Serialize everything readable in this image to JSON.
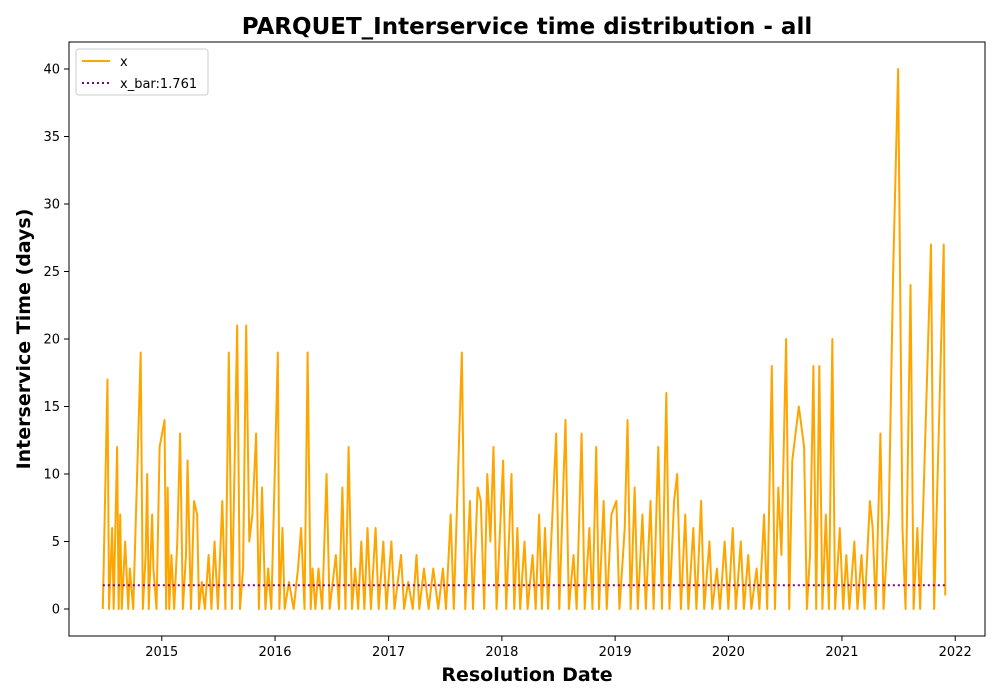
{
  "chart_data": {
    "type": "line",
    "title": "PARQUET_Interservice time distribution - all",
    "xlabel": "Resolution Date",
    "ylabel": "Interservice Time (days)",
    "xlim": [
      "2014-03-08",
      "2022-04-07"
    ],
    "ylim": [
      -2,
      42
    ],
    "x_ticks": [
      "2015",
      "2016",
      "2017",
      "2018",
      "2019",
      "2020",
      "2021",
      "2022"
    ],
    "y_ticks": [
      0,
      5,
      10,
      15,
      20,
      25,
      30,
      35,
      40
    ],
    "grid": false,
    "legend": {
      "placement": "top-left",
      "entries": [
        "x",
        "x_bar:1.761"
      ]
    },
    "series": [
      {
        "name": "x",
        "color": "#ffa500",
        "style": "solid",
        "points": [
          [
            "2014-06-25",
            0
          ],
          [
            "2014-07-10",
            17
          ],
          [
            "2014-07-15",
            0
          ],
          [
            "2014-07-25",
            6
          ],
          [
            "2014-07-30",
            0
          ],
          [
            "2014-08-10",
            12
          ],
          [
            "2014-08-15",
            0
          ],
          [
            "2014-08-20",
            7
          ],
          [
            "2014-08-25",
            0
          ],
          [
            "2014-09-05",
            5
          ],
          [
            "2014-09-15",
            0
          ],
          [
            "2014-09-20",
            3
          ],
          [
            "2014-10-01",
            0
          ],
          [
            "2014-10-25",
            19
          ],
          [
            "2014-11-01",
            0
          ],
          [
            "2014-11-10",
            4
          ],
          [
            "2014-11-15",
            10
          ],
          [
            "2014-11-20",
            0
          ],
          [
            "2014-12-01",
            7
          ],
          [
            "2014-12-05",
            3
          ],
          [
            "2014-12-15",
            0
          ],
          [
            "2014-12-25",
            12
          ],
          [
            "2015-01-10",
            14
          ],
          [
            "2015-01-15",
            0
          ],
          [
            "2015-01-20",
            9
          ],
          [
            "2015-01-25",
            0
          ],
          [
            "2015-02-01",
            4
          ],
          [
            "2015-02-10",
            0
          ],
          [
            "2015-02-20",
            5
          ],
          [
            "2015-03-01",
            13
          ],
          [
            "2015-03-10",
            0
          ],
          [
            "2015-03-20",
            4
          ],
          [
            "2015-03-25",
            11
          ],
          [
            "2015-04-05",
            0
          ],
          [
            "2015-04-15",
            8
          ],
          [
            "2015-04-25",
            7
          ],
          [
            "2015-05-01",
            0
          ],
          [
            "2015-05-10",
            2
          ],
          [
            "2015-05-20",
            0
          ],
          [
            "2015-06-01",
            4
          ],
          [
            "2015-06-10",
            0
          ],
          [
            "2015-06-20",
            5
          ],
          [
            "2015-07-01",
            0
          ],
          [
            "2015-07-15",
            8
          ],
          [
            "2015-07-25",
            0
          ],
          [
            "2015-08-05",
            19
          ],
          [
            "2015-08-15",
            0
          ],
          [
            "2015-09-01",
            21
          ],
          [
            "2015-09-10",
            0
          ],
          [
            "2015-09-20",
            3
          ],
          [
            "2015-09-30",
            21
          ],
          [
            "2015-10-10",
            5
          ],
          [
            "2015-10-20",
            7
          ],
          [
            "2015-11-01",
            13
          ],
          [
            "2015-11-10",
            0
          ],
          [
            "2015-11-20",
            9
          ],
          [
            "2015-12-01",
            0
          ],
          [
            "2015-12-10",
            3
          ],
          [
            "2015-12-20",
            0
          ],
          [
            "2016-01-10",
            19
          ],
          [
            "2016-01-15",
            0
          ],
          [
            "2016-01-25",
            6
          ],
          [
            "2016-02-01",
            0
          ],
          [
            "2016-02-15",
            2
          ],
          [
            "2016-03-01",
            0
          ],
          [
            "2016-03-15",
            3
          ],
          [
            "2016-03-25",
            6
          ],
          [
            "2016-04-05",
            0
          ],
          [
            "2016-04-15",
            19
          ],
          [
            "2016-04-25",
            0
          ],
          [
            "2016-05-01",
            3
          ],
          [
            "2016-05-10",
            0
          ],
          [
            "2016-05-20",
            3
          ],
          [
            "2016-06-01",
            0
          ],
          [
            "2016-06-15",
            10
          ],
          [
            "2016-06-25",
            0
          ],
          [
            "2016-07-15",
            4
          ],
          [
            "2016-07-25",
            0
          ],
          [
            "2016-08-05",
            9
          ],
          [
            "2016-08-15",
            0
          ],
          [
            "2016-08-25",
            12
          ],
          [
            "2016-09-05",
            0
          ],
          [
            "2016-09-15",
            3
          ],
          [
            "2016-09-25",
            0
          ],
          [
            "2016-10-05",
            5
          ],
          [
            "2016-10-15",
            0
          ],
          [
            "2016-10-25",
            6
          ],
          [
            "2016-11-05",
            0
          ],
          [
            "2016-11-20",
            6
          ],
          [
            "2016-11-30",
            0
          ],
          [
            "2016-12-15",
            5
          ],
          [
            "2016-12-25",
            0
          ],
          [
            "2017-01-10",
            5
          ],
          [
            "2017-01-20",
            0
          ],
          [
            "2017-02-10",
            4
          ],
          [
            "2017-02-20",
            0
          ],
          [
            "2017-03-05",
            2
          ],
          [
            "2017-03-20",
            0
          ],
          [
            "2017-04-01",
            4
          ],
          [
            "2017-04-10",
            0
          ],
          [
            "2017-04-25",
            3
          ],
          [
            "2017-05-10",
            0
          ],
          [
            "2017-05-25",
            3
          ],
          [
            "2017-06-10",
            0
          ],
          [
            "2017-06-25",
            3
          ],
          [
            "2017-07-05",
            0
          ],
          [
            "2017-07-20",
            7
          ],
          [
            "2017-07-30",
            0
          ],
          [
            "2017-08-25",
            19
          ],
          [
            "2017-09-05",
            0
          ],
          [
            "2017-09-20",
            8
          ],
          [
            "2017-09-30",
            0
          ],
          [
            "2017-10-15",
            9
          ],
          [
            "2017-10-25",
            8
          ],
          [
            "2017-11-05",
            0
          ],
          [
            "2017-11-15",
            10
          ],
          [
            "2017-11-25",
            5
          ],
          [
            "2017-12-05",
            12
          ],
          [
            "2017-12-15",
            0
          ],
          [
            "2018-01-05",
            11
          ],
          [
            "2018-01-15",
            0
          ],
          [
            "2018-02-01",
            10
          ],
          [
            "2018-02-10",
            0
          ],
          [
            "2018-02-20",
            6
          ],
          [
            "2018-03-01",
            0
          ],
          [
            "2018-03-15",
            5
          ],
          [
            "2018-03-25",
            0
          ],
          [
            "2018-04-10",
            4
          ],
          [
            "2018-04-20",
            0
          ],
          [
            "2018-05-01",
            7
          ],
          [
            "2018-05-10",
            0
          ],
          [
            "2018-05-20",
            6
          ],
          [
            "2018-05-30",
            0
          ],
          [
            "2018-06-15",
            8
          ],
          [
            "2018-06-25",
            13
          ],
          [
            "2018-07-05",
            0
          ],
          [
            "2018-07-25",
            14
          ],
          [
            "2018-08-05",
            0
          ],
          [
            "2018-08-20",
            4
          ],
          [
            "2018-08-30",
            0
          ],
          [
            "2018-09-15",
            13
          ],
          [
            "2018-09-25",
            0
          ],
          [
            "2018-10-10",
            6
          ],
          [
            "2018-10-20",
            0
          ],
          [
            "2018-11-01",
            12
          ],
          [
            "2018-11-10",
            0
          ],
          [
            "2018-11-25",
            8
          ],
          [
            "2018-12-05",
            0
          ],
          [
            "2018-12-20",
            7
          ],
          [
            "2019-01-05",
            8
          ],
          [
            "2019-01-15",
            0
          ],
          [
            "2019-02-01",
            6
          ],
          [
            "2019-02-10",
            14
          ],
          [
            "2019-02-20",
            0
          ],
          [
            "2019-03-05",
            9
          ],
          [
            "2019-03-15",
            0
          ],
          [
            "2019-03-30",
            7
          ],
          [
            "2019-04-10",
            0
          ],
          [
            "2019-04-25",
            8
          ],
          [
            "2019-05-05",
            0
          ],
          [
            "2019-05-20",
            12
          ],
          [
            "2019-06-01",
            0
          ],
          [
            "2019-06-15",
            16
          ],
          [
            "2019-06-25",
            0
          ],
          [
            "2019-07-10",
            8
          ],
          [
            "2019-07-20",
            10
          ],
          [
            "2019-08-01",
            0
          ],
          [
            "2019-08-15",
            7
          ],
          [
            "2019-08-25",
            0
          ],
          [
            "2019-09-10",
            6
          ],
          [
            "2019-09-20",
            0
          ],
          [
            "2019-10-05",
            8
          ],
          [
            "2019-10-15",
            0
          ],
          [
            "2019-11-01",
            5
          ],
          [
            "2019-11-10",
            0
          ],
          [
            "2019-11-25",
            3
          ],
          [
            "2019-12-05",
            0
          ],
          [
            "2019-12-20",
            5
          ],
          [
            "2020-01-01",
            0
          ],
          [
            "2020-01-15",
            6
          ],
          [
            "2020-01-25",
            0
          ],
          [
            "2020-02-10",
            5
          ],
          [
            "2020-02-20",
            0
          ],
          [
            "2020-03-05",
            4
          ],
          [
            "2020-03-15",
            0
          ],
          [
            "2020-04-01",
            3
          ],
          [
            "2020-04-10",
            0
          ],
          [
            "2020-04-25",
            7
          ],
          [
            "2020-05-05",
            0
          ],
          [
            "2020-05-20",
            18
          ],
          [
            "2020-05-30",
            0
          ],
          [
            "2020-06-10",
            9
          ],
          [
            "2020-06-20",
            4
          ],
          [
            "2020-07-05",
            20
          ],
          [
            "2020-07-15",
            0
          ],
          [
            "2020-07-25",
            11
          ],
          [
            "2020-08-15",
            15
          ],
          [
            "2020-09-01",
            12
          ],
          [
            "2020-09-10",
            0
          ],
          [
            "2020-09-20",
            4
          ],
          [
            "2020-10-01",
            18
          ],
          [
            "2020-10-10",
            0
          ],
          [
            "2020-10-20",
            18
          ],
          [
            "2020-10-30",
            0
          ],
          [
            "2020-11-10",
            7
          ],
          [
            "2020-11-20",
            0
          ],
          [
            "2020-12-01",
            20
          ],
          [
            "2020-12-10",
            0
          ],
          [
            "2020-12-25",
            6
          ],
          [
            "2021-01-05",
            0
          ],
          [
            "2021-01-15",
            4
          ],
          [
            "2021-01-25",
            0
          ],
          [
            "2021-02-10",
            5
          ],
          [
            "2021-02-20",
            0
          ],
          [
            "2021-03-05",
            4
          ],
          [
            "2021-03-15",
            0
          ],
          [
            "2021-04-01",
            8
          ],
          [
            "2021-04-10",
            6
          ],
          [
            "2021-04-20",
            0
          ],
          [
            "2021-05-05",
            13
          ],
          [
            "2021-05-15",
            0
          ],
          [
            "2021-06-01",
            7
          ],
          [
            "2021-06-15",
            25
          ],
          [
            "2021-07-01",
            40
          ],
          [
            "2021-07-15",
            6
          ],
          [
            "2021-07-25",
            0
          ],
          [
            "2021-08-10",
            24
          ],
          [
            "2021-08-20",
            0
          ],
          [
            "2021-09-01",
            6
          ],
          [
            "2021-09-10",
            0
          ],
          [
            "2021-10-15",
            27
          ],
          [
            "2021-10-25",
            0
          ],
          [
            "2021-11-25",
            27
          ],
          [
            "2021-11-30",
            1
          ]
        ]
      },
      {
        "name": "x_bar:1.761",
        "color": "#800080",
        "style": "dotted",
        "points": [
          [
            "2014-06-25",
            1.761
          ],
          [
            "2021-11-30",
            1.761
          ]
        ]
      }
    ]
  }
}
